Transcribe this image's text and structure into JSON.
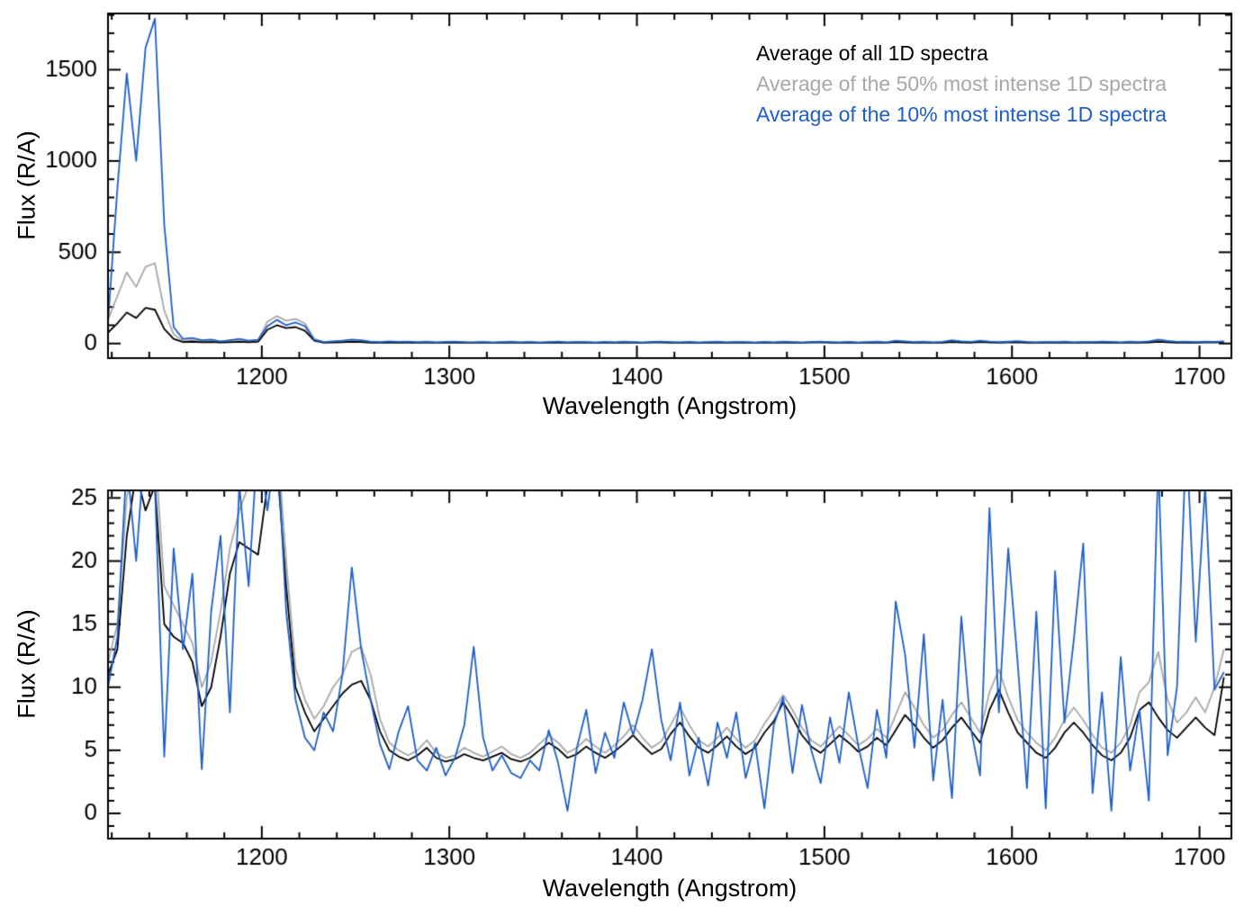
{
  "figure": {
    "background": "#ffffff"
  },
  "colors": {
    "black": "#000000",
    "gray": "#a8a8a8",
    "blue": "#1f5fc8"
  },
  "chart_data": [
    {
      "type": "line",
      "panel": "full-range-spectrum",
      "title": "",
      "xlabel": "Wavelength (Angstrom)",
      "ylabel": "Flux (R/A)",
      "xlim": [
        1118,
        1717
      ],
      "ylim": [
        -80,
        1808
      ],
      "xticks": [
        1200,
        1300,
        1400,
        1500,
        1600,
        1700
      ],
      "yticks": [
        0,
        500,
        1000,
        1500
      ],
      "x_minor_step": 20,
      "y_minor_step": 100,
      "x_start": 1118,
      "x_step": 5,
      "grid": false,
      "legend_position": "top-right",
      "series": [
        {
          "name": "Average of all 1D spectra",
          "color": "#000000",
          "values": [
            60,
            110,
            170,
            140,
            195,
            185,
            80,
            25,
            8,
            10,
            7,
            8,
            6,
            7,
            9,
            7,
            9,
            75,
            100,
            85,
            90,
            70,
            15,
            5,
            6,
            7,
            9,
            8,
            5,
            5,
            6,
            5,
            6,
            4,
            6,
            4,
            5,
            6,
            5,
            4,
            6,
            4,
            5,
            6,
            4,
            5,
            4,
            5,
            6,
            4,
            6,
            5,
            4,
            6,
            4,
            6,
            5,
            4,
            6,
            6,
            5,
            4,
            6,
            4,
            5,
            6,
            4,
            6,
            5,
            4,
            6,
            4,
            6,
            5,
            4,
            6,
            7,
            5,
            4,
            6,
            4,
            5,
            6,
            4,
            8,
            6,
            5,
            6,
            4,
            5,
            8,
            6,
            5,
            8,
            6,
            5,
            6,
            7,
            5,
            4,
            5,
            5,
            6,
            4,
            5,
            5,
            6,
            5,
            4,
            6,
            5,
            6,
            9,
            7,
            5,
            6,
            5,
            6,
            6,
            7
          ]
        },
        {
          "name": "Average of the 50% most intense 1D spectra",
          "color": "#a8a8a8",
          "values": [
            130,
            260,
            390,
            310,
            420,
            440,
            180,
            50,
            15,
            18,
            12,
            14,
            10,
            12,
            16,
            12,
            15,
            120,
            150,
            125,
            135,
            110,
            25,
            8,
            9,
            11,
            14,
            12,
            8,
            7,
            9,
            7,
            8,
            6,
            8,
            6,
            7,
            9,
            7,
            6,
            8,
            5,
            7,
            8,
            6,
            7,
            5,
            7,
            9,
            6,
            8,
            7,
            5,
            8,
            6,
            8,
            7,
            5,
            8,
            9,
            7,
            6,
            8,
            5,
            7,
            8,
            6,
            8,
            7,
            5,
            8,
            6,
            8,
            7,
            5,
            8,
            9,
            7,
            6,
            8,
            5,
            7,
            8,
            6,
            11,
            9,
            7,
            8,
            6,
            7,
            12,
            9,
            7,
            11,
            8,
            7,
            8,
            10,
            7,
            6,
            7,
            7,
            8,
            6,
            7,
            7,
            9,
            7,
            6,
            8,
            7,
            9,
            14,
            10,
            7,
            9,
            7,
            8,
            8,
            10
          ]
        },
        {
          "name": "Average of the 10% most intense 1D spectra",
          "color": "#1f5fc8",
          "values": [
            120,
            850,
            1480,
            1000,
            1620,
            1780,
            650,
            90,
            25,
            30,
            18,
            22,
            12,
            18,
            25,
            15,
            20,
            95,
            130,
            100,
            115,
            95,
            20,
            8,
            12,
            15,
            22,
            18,
            10,
            8,
            12,
            9,
            11,
            8,
            10,
            7,
            9,
            11,
            8,
            7,
            9,
            6,
            8,
            10,
            7,
            9,
            6,
            8,
            11,
            7,
            9,
            8,
            6,
            9,
            7,
            10,
            8,
            6,
            9,
            11,
            8,
            7,
            9,
            6,
            8,
            10,
            7,
            9,
            8,
            6,
            9,
            7,
            10,
            8,
            6,
            9,
            11,
            8,
            7,
            9,
            6,
            8,
            10,
            7,
            15,
            12,
            8,
            10,
            7,
            9,
            18,
            12,
            9,
            16,
            11,
            8,
            10,
            13,
            9,
            7,
            9,
            8,
            10,
            7,
            9,
            8,
            11,
            9,
            7,
            10,
            8,
            12,
            22,
            14,
            9,
            11,
            8,
            10,
            9,
            12
          ]
        }
      ]
    },
    {
      "type": "line",
      "panel": "zoomed-spectrum",
      "title": "",
      "xlabel": "Wavelength (Angstrom)",
      "ylabel": "Flux (R/A)",
      "xlim": [
        1118,
        1717
      ],
      "ylim": [
        -2,
        25.6
      ],
      "xticks": [
        1200,
        1300,
        1400,
        1500,
        1600,
        1700
      ],
      "yticks": [
        0,
        5,
        10,
        15,
        20,
        25
      ],
      "x_minor_step": 20,
      "y_minor_step": 1,
      "x_start": 1118,
      "x_step": 5,
      "grid": false,
      "legend_position": "none",
      "series": [
        {
          "name": "Average of all 1D spectra",
          "color": "#000000",
          "values": [
            11,
            13,
            22,
            27,
            24,
            26,
            15,
            14,
            13.5,
            12,
            8.5,
            10,
            14,
            19,
            21.5,
            21,
            20.5,
            26,
            28,
            18,
            10,
            8,
            6.5,
            7.5,
            8.5,
            9.5,
            10.2,
            10.5,
            9,
            6.5,
            5,
            4.5,
            4.2,
            4.6,
            5.2,
            4.4,
            4.1,
            4.3,
            4.7,
            4.4,
            4.2,
            4.5,
            4.8,
            4.3,
            4.1,
            4.4,
            5.0,
            5.6,
            5.1,
            4.4,
            4.7,
            5.3,
            4.8,
            4.4,
            4.9,
            5.5,
            6.2,
            5.4,
            4.7,
            5.1,
            6.3,
            7.2,
            6.1,
            5.2,
            4.8,
            5.4,
            6.1,
            5.3,
            4.7,
            5.2,
            6.4,
            7.3,
            8.8,
            7.6,
            6.2,
            5.3,
            4.8,
            5.5,
            6.2,
            5.6,
            4.9,
            5.3,
            6.0,
            5.4,
            6.6,
            7.8,
            7.0,
            6.0,
            5.2,
            5.8,
            6.8,
            7.6,
            6.6,
            5.6,
            8.2,
            9.8,
            8.0,
            6.4,
            5.6,
            4.8,
            4.4,
            5.2,
            6.4,
            7.2,
            6.4,
            5.4,
            4.6,
            4.2,
            4.8,
            6.0,
            8.2,
            8.8,
            7.6,
            6.6,
            6.0,
            6.8,
            7.6,
            6.8,
            6.2,
            10.8
          ]
        },
        {
          "name": "Average of the 50% most intense 1D spectra",
          "color": "#a8a8a8",
          "values": [
            12,
            15,
            25,
            30,
            27,
            29,
            18,
            16.5,
            15,
            13.5,
            10,
            12,
            16,
            21,
            24,
            26,
            28,
            30,
            30,
            20,
            11.5,
            9,
            7.5,
            8.5,
            10,
            11,
            12.8,
            13.2,
            11,
            7.5,
            5.6,
            5.0,
            4.6,
            5.0,
            5.8,
            4.8,
            4.4,
            4.6,
            5.2,
            4.8,
            4.5,
            4.9,
            5.3,
            4.7,
            4.4,
            4.8,
            5.5,
            6.2,
            5.6,
            4.8,
            5.2,
            5.9,
            5.3,
            4.8,
            5.4,
            6.1,
            7.0,
            6.0,
            5.2,
            5.7,
            7.0,
            8.4,
            7.0,
            5.8,
            5.3,
            6.0,
            6.8,
            5.9,
            5.2,
            5.8,
            7.1,
            8.2,
            9.4,
            8.2,
            6.8,
            5.8,
            5.3,
            6.1,
            6.9,
            6.2,
            5.4,
            5.9,
            6.7,
            6.0,
            7.8,
            9.6,
            8.4,
            7.0,
            6.0,
            6.6,
            7.8,
            8.8,
            7.6,
            6.4,
            9.6,
            11.4,
            9.2,
            7.4,
            6.4,
            5.6,
            5.0,
            6.0,
            7.4,
            8.4,
            7.4,
            6.2,
            5.2,
            4.8,
            5.6,
            7.0,
            9.6,
            10.4,
            12.8,
            9.0,
            7.2,
            8.0,
            9.2,
            8.0,
            10.0,
            13.0
          ]
        },
        {
          "name": "Average of the 10% most intense 1D spectra",
          "color": "#1f5fc8",
          "values": [
            10,
            14,
            28,
            20,
            30,
            26,
            4.5,
            21,
            13,
            19,
            3.5,
            16,
            22,
            8,
            26,
            18,
            30,
            24,
            30,
            16,
            9,
            6,
            5,
            8,
            6.5,
            11,
            19.5,
            13,
            9,
            5.5,
            3.5,
            6.5,
            8.5,
            4.2,
            3.4,
            5.2,
            3.0,
            4.4,
            7.0,
            13.2,
            6.0,
            3.4,
            4.6,
            3.2,
            2.8,
            4.2,
            3.4,
            6.6,
            4.0,
            0.2,
            5.2,
            8.2,
            3.2,
            6.4,
            4.4,
            8.8,
            6.2,
            9.0,
            13.0,
            7.4,
            4.2,
            8.8,
            3.0,
            6.0,
            2.2,
            7.2,
            4.4,
            8.0,
            2.8,
            5.6,
            0.4,
            7.0,
            9.2,
            3.2,
            8.6,
            5.0,
            2.4,
            7.6,
            4.0,
            9.6,
            5.4,
            2.0,
            8.2,
            4.4,
            16.8,
            12.6,
            5.2,
            14.2,
            2.6,
            9.0,
            1.2,
            15.6,
            6.8,
            3.0,
            24.2,
            8.0,
            21.0,
            12.0,
            2.0,
            16.0,
            0.4,
            19.2,
            7.2,
            13.8,
            21.4,
            1.6,
            9.6,
            0.2,
            12.4,
            3.4,
            8.2,
            1.0,
            28.0,
            4.6,
            10.0,
            30.0,
            13.6,
            26.0,
            9.8,
            11.2
          ]
        }
      ]
    }
  ]
}
